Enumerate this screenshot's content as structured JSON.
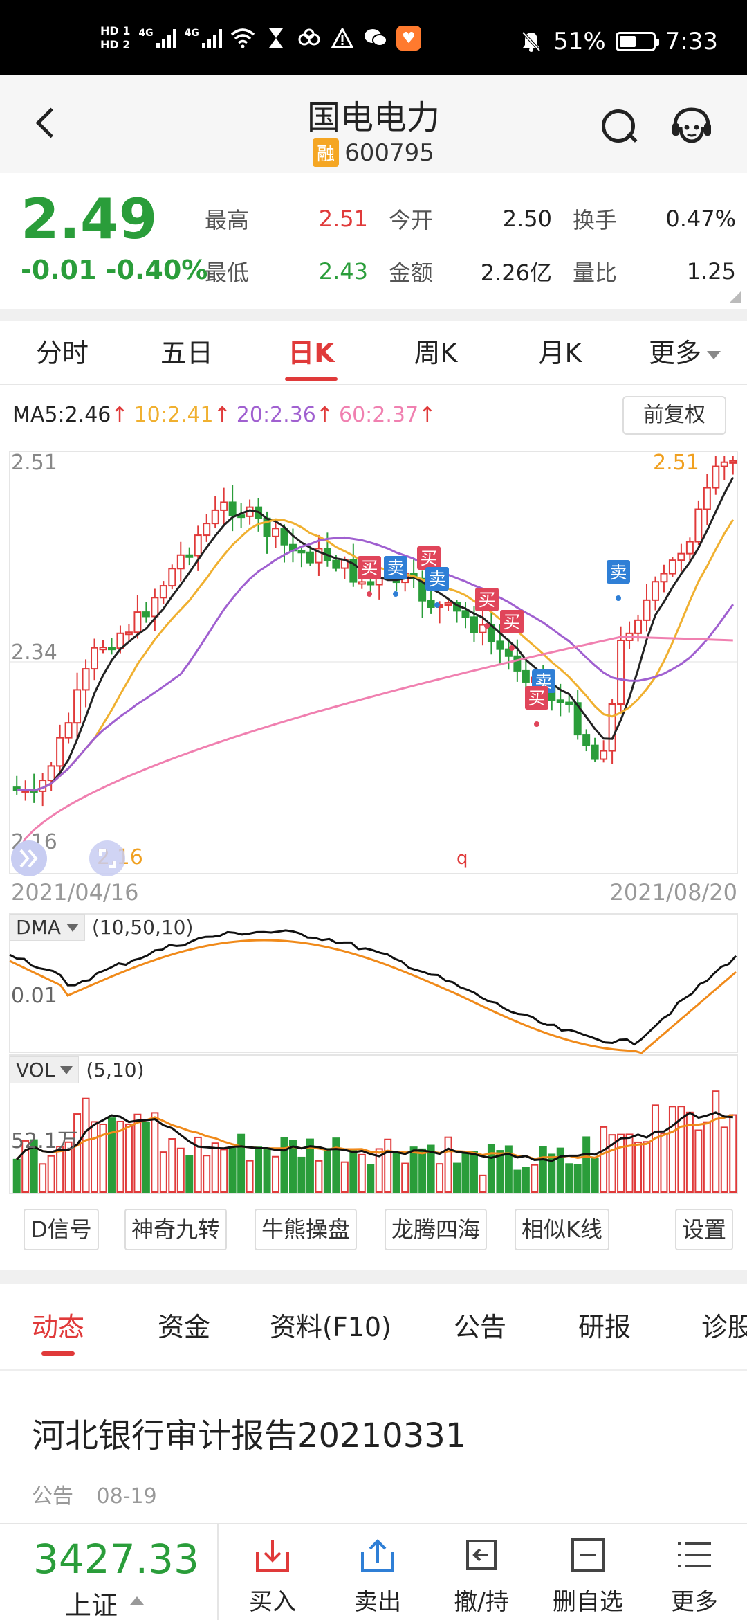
{
  "status_bar": {
    "hd1": "HD 1",
    "hd2": "HD 2",
    "net1": "4G",
    "net2": "4G",
    "battery_pct": "51%",
    "battery_level": 0.51,
    "time": "7:33",
    "icons": [
      "wifi-icon",
      "hourglass-icon",
      "infinity-icon",
      "warning-icon",
      "wechat-icon",
      "heart-app-icon",
      "mute-bell-icon"
    ]
  },
  "header": {
    "title": "国电电力",
    "badge": "融",
    "code": "600795"
  },
  "quote": {
    "price": "2.49",
    "change": "-0.01 -0.40%",
    "stats": [
      {
        "label": "最高",
        "value": "2.51",
        "color": "red"
      },
      {
        "label": "最低",
        "value": "2.43",
        "color": "green"
      },
      {
        "label": "今开",
        "value": "2.50",
        "color": "black"
      },
      {
        "label": "金额",
        "value": "2.26亿",
        "color": "black"
      },
      {
        "label": "换手",
        "value": "0.47%",
        "color": "black"
      },
      {
        "label": "量比",
        "value": "1.25",
        "color": "black"
      }
    ]
  },
  "tabs": [
    "分时",
    "五日",
    "日K",
    "周K",
    "月K",
    "更多"
  ],
  "active_tab": "日K",
  "ma": {
    "ma5": "MA5:2.46",
    "ma10": "10:2.41",
    "ma20": "20:2.36",
    "ma60": "60:2.37",
    "colors": {
      "ma5": "#222222",
      "ma10": "#f0b030",
      "ma20": "#a060d0",
      "ma60": "#f080b0"
    }
  },
  "adjust_button": "前复权",
  "kline": {
    "y_top": "2.51",
    "y_mid": "2.34",
    "y_bot": "2.16",
    "high_label": "2.51",
    "low_label": "2.16",
    "q_mark": "q",
    "date_start": "2021/04/16",
    "date_end": "2021/08/20",
    "signals": [
      {
        "text": "买",
        "type": "buy"
      },
      {
        "text": "卖",
        "type": "sell"
      },
      {
        "text": "买",
        "type": "buy"
      },
      {
        "text": "卖",
        "type": "sell"
      },
      {
        "text": "买",
        "type": "buy"
      },
      {
        "text": "买",
        "type": "buy"
      },
      {
        "text": "卖",
        "type": "sell"
      },
      {
        "text": "买",
        "type": "buy"
      },
      {
        "text": "卖",
        "type": "sell"
      }
    ],
    "up_color": "#e03a3a",
    "down_color": "#2a9d3a"
  },
  "dma": {
    "name": "DMA",
    "params": "(10,50,10)",
    "y_label": "0.01"
  },
  "vol": {
    "name": "VOL",
    "params": "(5,10)",
    "y_label": "52.1万"
  },
  "tools": [
    "D信号",
    "神奇九转",
    "牛熊操盘",
    "龙腾四海",
    "相似K线",
    "设置"
  ],
  "news_tabs": [
    "动态",
    "资金",
    "资料(F10)",
    "公告",
    "研报",
    "诊股"
  ],
  "active_news_tab": "动态",
  "news": {
    "title": "河北银行审计报告20210331",
    "category": "公告",
    "date": "08-19"
  },
  "bottom_bar": {
    "index_value": "3427.33",
    "index_name": "上证",
    "buttons": [
      "买入",
      "卖出",
      "撤/持",
      "删自选",
      "更多"
    ]
  }
}
